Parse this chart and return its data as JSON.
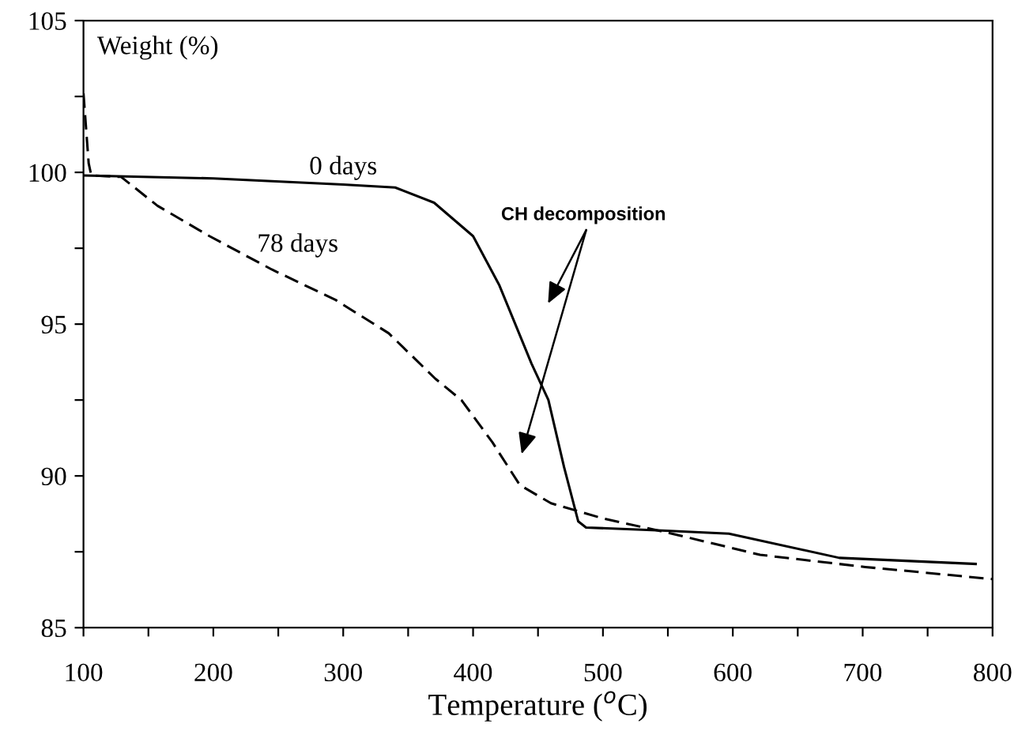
{
  "chart_data": {
    "type": "line",
    "ylabel": "Weight (%)",
    "xlabel": "Temperature ($^{o}$C)",
    "xlim": [
      100,
      800
    ],
    "ylim": [
      85,
      105
    ],
    "xticks": [
      100,
      {
        "value": 150,
        "label": null
      },
      200,
      {
        "value": 250,
        "label": null
      },
      300,
      {
        "value": 350,
        "label": null
      },
      400,
      {
        "value": 450,
        "label": null
      },
      500,
      {
        "value": 550,
        "label": null
      },
      600,
      {
        "value": 650,
        "label": null
      },
      700,
      {
        "value": 750,
        "label": null
      },
      800
    ],
    "yticks": [
      85,
      {
        "value": 87.5,
        "label": null
      },
      90,
      {
        "value": 92.5,
        "label": null
      },
      95,
      {
        "value": 97.5,
        "label": null
      },
      100,
      {
        "value": 102.5,
        "label": null
      },
      105
    ],
    "grid": false,
    "legend": false,
    "marker": "none",
    "series": [
      {
        "name": "0 days",
        "color": "#000000",
        "line_style": "solid",
        "x": [
          100,
          200,
          300,
          340,
          370,
          400,
          420,
          445,
          458,
          470,
          481,
          487,
          545,
          597,
          682,
          787
        ],
        "values": [
          99.9,
          99.8,
          99.6,
          99.5,
          99.0,
          97.9,
          96.3,
          93.7,
          92.5,
          90.3,
          88.5,
          88.3,
          88.2,
          88.1,
          87.3,
          87.1
        ]
      },
      {
        "name": "78 days",
        "color": "#000000",
        "line_style": "dashed",
        "x": [
          100,
          104,
          106,
          129,
          157,
          197,
          245,
          294,
          335,
          371,
          391,
          415,
          436,
          460,
          500,
          553,
          621,
          702,
          800
        ],
        "values": [
          102.6,
          100.3,
          99.9,
          99.85,
          98.9,
          97.9,
          96.8,
          95.8,
          94.7,
          93.2,
          92.5,
          91.1,
          89.7,
          89.1,
          88.6,
          88.1,
          87.4,
          87.0,
          86.6
        ]
      }
    ],
    "annotations": [
      "CH decomposition"
    ]
  }
}
